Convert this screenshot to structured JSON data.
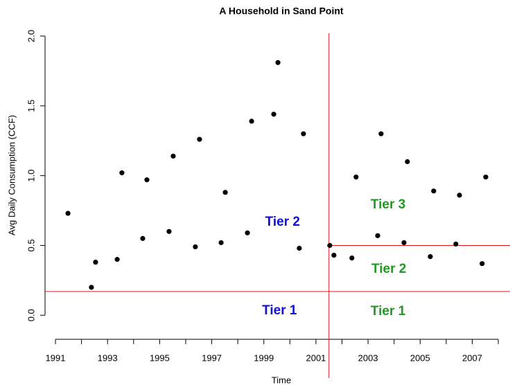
{
  "chart_data": {
    "type": "scatter",
    "title": "A Household in Sand Point",
    "x_label": "Time",
    "y_label": "Avg Daily Consumption (CCF)",
    "color": "#000000",
    "x": [
      1991.48,
      1992.38,
      1992.54,
      1993.37,
      1993.55,
      1994.35,
      1994.51,
      1995.36,
      1995.52,
      1996.37,
      1996.53,
      1997.36,
      1997.52,
      1998.37,
      1998.53,
      1999.38,
      1999.54,
      2000.36,
      2000.52,
      2001.53,
      2001.69,
      2002.38,
      2002.54,
      2003.37,
      2003.5,
      2004.38,
      2004.51,
      2005.39,
      2005.52,
      2006.37,
      2006.51,
      2007.38,
      2007.52
    ],
    "values": [
      0.73,
      0.2,
      0.38,
      0.4,
      1.02,
      0.55,
      0.97,
      0.6,
      1.14,
      0.49,
      1.26,
      0.52,
      0.88,
      0.59,
      1.39,
      1.44,
      1.81,
      0.48,
      1.3,
      0.5,
      0.43,
      0.41,
      0.99,
      0.57,
      1.3,
      0.52,
      1.1,
      0.42,
      0.89,
      0.51,
      0.86,
      0.37,
      0.99
    ],
    "xlim": [
      1990.6,
      2008.45
    ],
    "ylim": [
      -0.45,
      2.02
    ],
    "xticks": [
      1991,
      1993,
      1995,
      1997,
      1999,
      2001,
      2003,
      2005,
      2007
    ],
    "xminorticks": [
      1992,
      1994,
      1996,
      1998,
      2000,
      2002,
      2004,
      2006,
      2008
    ],
    "yticks": [
      {
        "value": 0,
        "label": "0.0"
      },
      {
        "value": 0.5,
        "label": "0.5"
      },
      {
        "value": 1,
        "label": "1.0"
      },
      {
        "value": 1.5,
        "label": "1.5"
      },
      {
        "value": 2,
        "label": "2.0"
      }
    ],
    "reference_lines": [
      {
        "orientation": "vertical",
        "value": 2001.5,
        "color": "#e0191f"
      },
      {
        "orientation": "horizontal",
        "value": 0.17,
        "color": "#e0191f"
      },
      {
        "orientation": "horizontal",
        "value": 0.5,
        "from": 2001.5,
        "color": "#e0191f"
      }
    ],
    "annotations": [
      {
        "text": "Tier 2",
        "x": 1999.72,
        "y": 0.665,
        "color": "#1010d8"
      },
      {
        "text": "Tier 1",
        "x": 1999.6,
        "y": 0.03,
        "color": "#1010d8"
      },
      {
        "text": "Tier 3",
        "x": 2003.77,
        "y": 0.79,
        "color": "#1f9a1f"
      },
      {
        "text": "Tier 2",
        "x": 2003.8,
        "y": 0.33,
        "color": "#1f9a1f"
      },
      {
        "text": "Tier 1",
        "x": 2003.77,
        "y": 0.025,
        "color": "#1f9a1f"
      }
    ]
  }
}
